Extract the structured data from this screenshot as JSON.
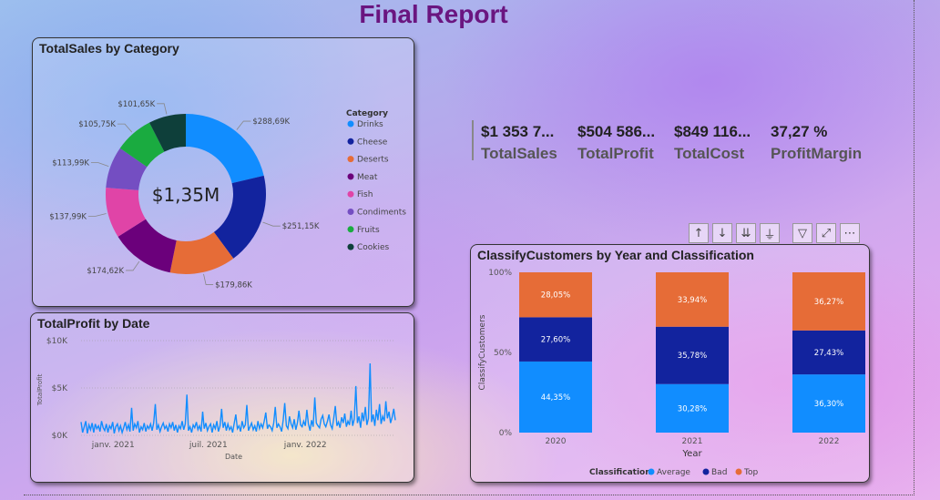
{
  "page": {
    "title": "Final Report"
  },
  "donut": {
    "title": "TotalSales by Category",
    "center_label": "$1,35M",
    "legend_title": "Category"
  },
  "kpis": [
    {
      "value": "$1 353 7...",
      "label": "TotalSales"
    },
    {
      "value": "$504 586...",
      "label": "TotalProfit"
    },
    {
      "value": "$849 116...",
      "label": "TotalCost"
    },
    {
      "value": "37,27 %",
      "label": "ProfitMargin"
    }
  ],
  "line": {
    "title": "TotalProfit by Date"
  },
  "bar": {
    "title": "ClassifyCustomers by Year and Classification",
    "legend_title": "Classification"
  },
  "toolbar": {
    "icons": [
      "arrow-up-icon",
      "arrow-down-icon",
      "double-arrow-down-icon",
      "expand-hierarchy-icon",
      "filter-icon",
      "focus-mode-icon",
      "more-options-icon"
    ],
    "glyphs": [
      "↑",
      "↓",
      "⇊",
      "⏚",
      "▽",
      "⤢",
      "⋯"
    ]
  },
  "chart_data": [
    {
      "type": "pie",
      "title": "TotalSales by Category",
      "legend_title": "Category",
      "center_label": "$1,35M",
      "categories": [
        "Drinks",
        "Cheese",
        "Deserts",
        "Meat",
        "Fish",
        "Condiments",
        "Fruits",
        "Cookies"
      ],
      "values": [
        288.69,
        251.15,
        179.86,
        174.62,
        137.99,
        113.99,
        105.75,
        101.65
      ],
      "value_labels": [
        "$288,69K",
        "$251,15K",
        "$179,86K",
        "$174,62K",
        "$137,99K",
        "$113,99K",
        "$105,75K",
        "$101,65K"
      ],
      "colors": [
        "#118dff",
        "#12239e",
        "#e66c37",
        "#6b007b",
        "#e044a7",
        "#744ec2",
        "#1aab40",
        "#0e3f3a"
      ],
      "legend_position": "right"
    },
    {
      "type": "line",
      "title": "TotalProfit by Date",
      "xlabel": "Date",
      "ylabel": "TotalProfit",
      "ylim": [
        0,
        10000
      ],
      "y_ticks": [
        "$0K",
        "$5K",
        "$10K"
      ],
      "x_ticks": [
        "janv. 2021",
        "juil. 2021",
        "janv. 2022"
      ],
      "color": "#118dff",
      "x_start": "2020-11-01",
      "step_days": 3,
      "values": [
        1400,
        300,
        900,
        1500,
        200,
        1100,
        600,
        1300,
        300,
        1200,
        700,
        1000,
        400,
        1500,
        800,
        500,
        1200,
        300,
        1000,
        700,
        1400,
        200,
        900,
        1200,
        500,
        1000,
        300,
        800,
        1400,
        600,
        1100,
        400,
        2900,
        500,
        1200,
        800,
        1500,
        300,
        900,
        600,
        1300,
        400,
        1000,
        700,
        1200,
        500,
        1300,
        3300,
        600,
        1100,
        400,
        900,
        1300,
        700,
        1000,
        400,
        1200,
        800,
        1400,
        500,
        1100,
        300,
        1000,
        700,
        1500,
        600,
        1200,
        4300,
        500,
        900,
        300,
        1100,
        800,
        1400,
        600,
        1000,
        400,
        2500,
        700,
        1300,
        500,
        900,
        1200,
        300,
        1100,
        700,
        1500,
        400,
        1000,
        2800,
        800,
        1400,
        500,
        1200,
        600,
        900,
        300,
        1300,
        2200,
        700,
        1000,
        400,
        1500,
        800,
        1100,
        3200,
        500,
        900,
        1300,
        600,
        1000,
        400,
        1500,
        700,
        1200,
        800,
        1500,
        2400,
        700,
        1100,
        900,
        500,
        1300,
        3000,
        800,
        1200,
        900,
        400,
        1600,
        3400,
        1000,
        700,
        2000,
        1200,
        800,
        1700,
        600,
        1300,
        2600,
        1100,
        900,
        1500,
        1000,
        2700,
        1200,
        500,
        1600,
        900,
        4000,
        1300,
        1000,
        800,
        1700,
        2100,
        1200,
        900,
        1500,
        2200,
        1100,
        700,
        1800,
        3100,
        1000,
        1400,
        800,
        1900,
        1300,
        2300,
        900,
        1500,
        1100,
        2600,
        1000,
        1700,
        5200,
        1300,
        2000,
        800,
        2400,
        1500,
        3000,
        1100,
        1800,
        7600,
        1400,
        2200,
        1000,
        2700,
        1600,
        3300,
        1200,
        2000,
        1500,
        3600,
        1800,
        2500,
        1300,
        1900,
        2800,
        1600
      ],
      "peaks": [
        7600,
        5200
      ]
    },
    {
      "type": "bar",
      "stacked": true,
      "percent": true,
      "title": "ClassifyCustomers by Year and Classification",
      "xlabel": "Year",
      "ylabel": "ClassifyCustomers",
      "y_ticks": [
        "0%",
        "50%",
        "100%"
      ],
      "categories": [
        "2020",
        "2021",
        "2022"
      ],
      "series": [
        {
          "name": "Average",
          "color": "#118dff",
          "values": [
            44.35,
            30.28,
            36.3
          ],
          "labels": [
            "44,35%",
            "30,28%",
            "36,30%"
          ]
        },
        {
          "name": "Bad",
          "color": "#12239e",
          "values": [
            27.6,
            35.78,
            27.43
          ],
          "labels": [
            "27,60%",
            "35,78%",
            "27,43%"
          ]
        },
        {
          "name": "Top",
          "color": "#e66c37",
          "values": [
            28.05,
            33.94,
            36.27
          ],
          "labels": [
            "28,05%",
            "33,94%",
            "36,27%"
          ]
        }
      ],
      "legend_position": "bottom"
    }
  ]
}
